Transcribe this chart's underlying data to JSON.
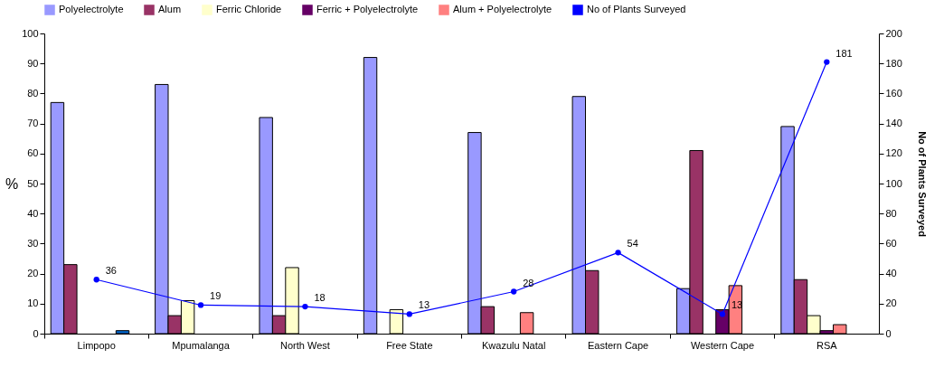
{
  "chart_data": {
    "type": "bar",
    "categories": [
      "Limpopo",
      "Mpumalanga",
      "North West",
      "Free State",
      "Kwazulu Natal",
      "Eastern Cape",
      "Western Cape",
      "RSA"
    ],
    "ylabel": "%",
    "y2label": "No of Plants Surveyed",
    "ylim": [
      0,
      100
    ],
    "yticks": [
      0,
      10,
      20,
      30,
      40,
      50,
      60,
      70,
      80,
      90,
      100
    ],
    "y2lim": [
      0,
      200
    ],
    "y2ticks": [
      0,
      20,
      40,
      60,
      80,
      100,
      120,
      140,
      160,
      180,
      200
    ],
    "grid": false,
    "legend": "top",
    "series": [
      {
        "name": "Polyelectrolyte",
        "color": "#9999ff",
        "values": [
          77,
          83,
          72,
          92,
          67,
          79,
          15,
          69
        ]
      },
      {
        "name": "Alum",
        "color": "#993366",
        "values": [
          23,
          6,
          6,
          null,
          9,
          21,
          61,
          18
        ]
      },
      {
        "name": "Ferric Chloride",
        "color": "#ffffcc",
        "values": [
          null,
          11,
          22,
          8,
          null,
          null,
          null,
          6
        ]
      },
      {
        "name": "Ferric + Polyelectrolyte",
        "color": "#660066",
        "values": [
          null,
          null,
          null,
          null,
          null,
          null,
          8,
          1
        ]
      },
      {
        "name": "Alum + Polyelectrolyte",
        "color": "#ff8080",
        "values": [
          null,
          null,
          null,
          null,
          7,
          null,
          16,
          3
        ]
      },
      {
        "color": "#0066cc",
        "values": [
          1,
          null,
          null,
          null,
          null,
          null,
          null,
          null
        ]
      },
      {
        "name": "No of Plants Surveyed",
        "type": "line",
        "axis": "y2",
        "color": "#0000ff",
        "marker": "circle",
        "data_labels": true,
        "values": [
          36,
          19,
          18,
          13,
          28,
          54,
          13,
          181
        ]
      }
    ]
  }
}
